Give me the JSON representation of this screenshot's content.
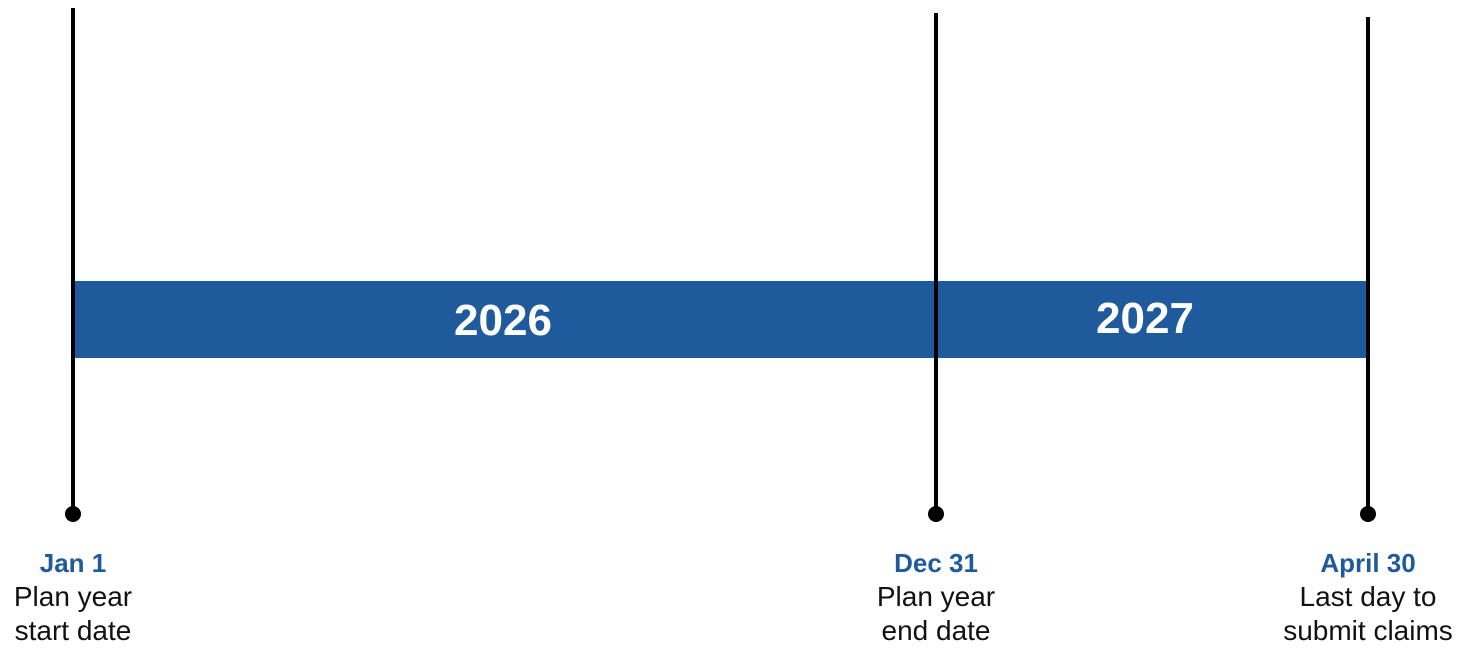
{
  "bar": {
    "color": "#1f5a9c",
    "years": [
      "2026",
      "2027"
    ]
  },
  "milestones": [
    {
      "date": "Jan 1",
      "line1": "Plan year",
      "line2": "start date"
    },
    {
      "date": "Dec 31",
      "line1": "Plan year",
      "line2": "end date"
    },
    {
      "date": "April 30",
      "line1": "Last day to",
      "line2": "submit claims"
    }
  ]
}
